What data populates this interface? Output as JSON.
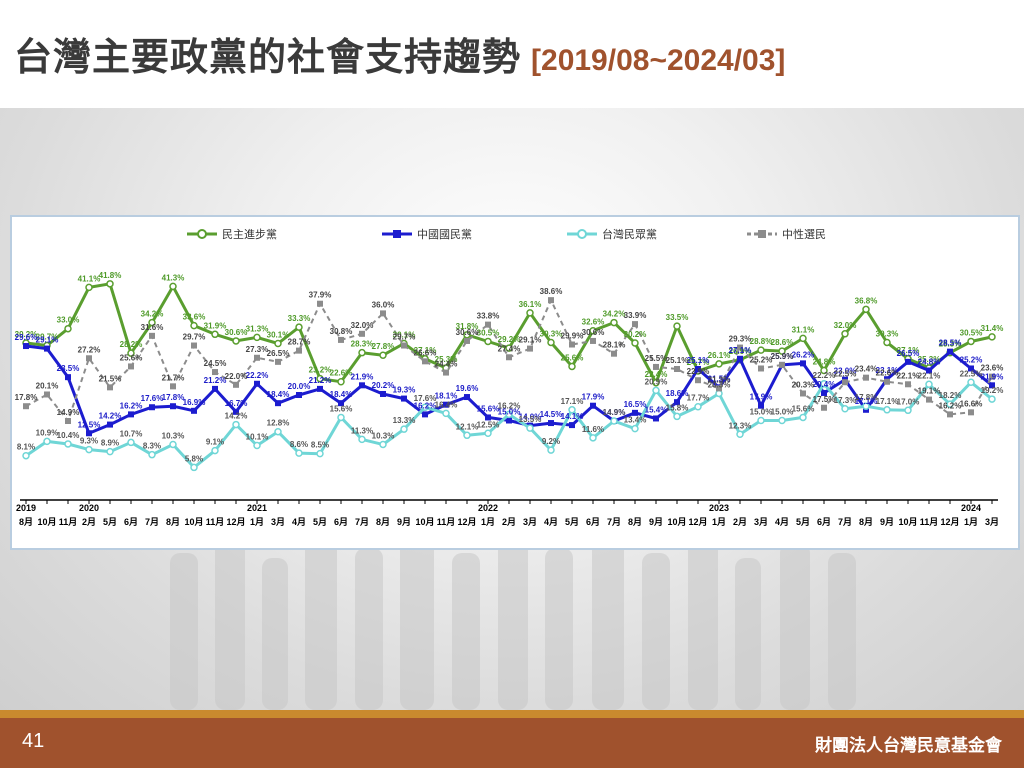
{
  "slide": {
    "title": "台灣主要政黨的社會支持趨勢",
    "date_range": "[2019/08~2024/03]",
    "page_number": "41",
    "organization": "財團法人台灣民意基金會"
  },
  "chart_data": {
    "type": "line",
    "x": [
      "8月",
      "10月",
      "11月",
      "2月",
      "5月",
      "6月",
      "7月",
      "8月",
      "10月",
      "11月",
      "12月",
      "1月",
      "3月",
      "4月",
      "5月",
      "6月",
      "7月",
      "8月",
      "9月",
      "10月",
      "11月",
      "12月",
      "1月",
      "2月",
      "3月",
      "4月",
      "5月",
      "6月",
      "7月",
      "8月",
      "9月",
      "10月",
      "12月",
      "1月",
      "2月",
      "3月",
      "4月",
      "5月",
      "6月",
      "7月",
      "8月",
      "9月",
      "10月",
      "11月",
      "12月",
      "1月",
      "3月"
    ],
    "year_labels": [
      {
        "index": 0,
        "label": "2019"
      },
      {
        "index": 3,
        "label": "2020"
      },
      {
        "index": 11,
        "label": "2021"
      },
      {
        "index": 22,
        "label": "2022"
      },
      {
        "index": 33,
        "label": "2023"
      },
      {
        "index": 45,
        "label": "2024"
      }
    ],
    "ylim": [
      0,
      50
    ],
    "legend_position": "top",
    "grid": false,
    "series": [
      {
        "name": "民主進步黨",
        "color": "#5a9e2f",
        "label_color": "#4e9a28",
        "marker": "circle",
        "values": [
          30.2,
          29.7,
          33.0,
          41.1,
          41.8,
          28.2,
          34.2,
          41.3,
          33.6,
          31.9,
          30.6,
          31.3,
          30.1,
          33.3,
          23.2,
          22.6,
          28.3,
          27.8,
          30.1,
          27.1,
          25.3,
          31.8,
          30.5,
          29.2,
          36.1,
          30.3,
          25.6,
          32.6,
          34.2,
          30.2,
          22.4,
          33.5,
          24.7,
          26.1,
          26.9,
          28.8,
          28.6,
          31.1,
          24.8,
          32.0,
          36.8,
          30.3,
          27.1,
          25.3,
          28.3,
          30.5,
          31.4
        ]
      },
      {
        "name": "中國國民黨",
        "color": "#1c1ccf",
        "label_color": "#1c1cc8",
        "marker": "square",
        "values": [
          29.6,
          29.1,
          23.5,
          12.5,
          14.2,
          16.2,
          17.6,
          17.8,
          16.9,
          21.2,
          16.7,
          22.2,
          18.4,
          20.0,
          21.2,
          18.4,
          21.9,
          20.2,
          19.3,
          16.2,
          18.1,
          19.6,
          15.6,
          15.0,
          14.0,
          14.5,
          14.1,
          17.9,
          14.9,
          16.5,
          15.4,
          18.6,
          25.1,
          21.5,
          27.1,
          17.9,
          25.9,
          26.2,
          20.4,
          23.0,
          17.1,
          23.1,
          26.5,
          24.8,
          28.5,
          25.2,
          21.9
        ]
      },
      {
        "name": "台灣民眾黨",
        "color": "#6fd6d6",
        "label_color": "#555555",
        "marker": "circle",
        "values": [
          8.1,
          10.9,
          10.4,
          9.3,
          8.9,
          10.7,
          8.3,
          10.3,
          5.8,
          9.1,
          14.2,
          10.1,
          12.8,
          8.6,
          8.5,
          15.6,
          11.3,
          10.3,
          13.3,
          17.6,
          16.4,
          12.1,
          12.5,
          16.2,
          13.5,
          9.2,
          17.1,
          11.6,
          14.9,
          13.4,
          20.9,
          15.8,
          17.7,
          20.3,
          12.3,
          15.0,
          15.0,
          15.6,
          22.2,
          17.3,
          17.8,
          17.1,
          17.0,
          22.1,
          18.2,
          22.5,
          19.2
        ]
      },
      {
        "name": "中性選民",
        "color": "#8c8c8c",
        "label_color": "#444444",
        "marker": "square",
        "dashed": true,
        "values": [
          17.8,
          20.1,
          14.9,
          27.2,
          21.5,
          25.6,
          31.6,
          21.7,
          29.7,
          24.5,
          22.0,
          27.3,
          26.5,
          28.7,
          37.9,
          30.8,
          32.0,
          36.0,
          29.7,
          26.6,
          24.4,
          30.6,
          33.8,
          27.4,
          29.1,
          38.6,
          29.9,
          30.6,
          28.1,
          33.9,
          25.5,
          25.1,
          22.9,
          21.3,
          29.3,
          25.2,
          25.9,
          20.3,
          17.5,
          22.5,
          23.4,
          22.6,
          22.1,
          19.1,
          16.2,
          16.6,
          23.6
        ]
      }
    ]
  }
}
